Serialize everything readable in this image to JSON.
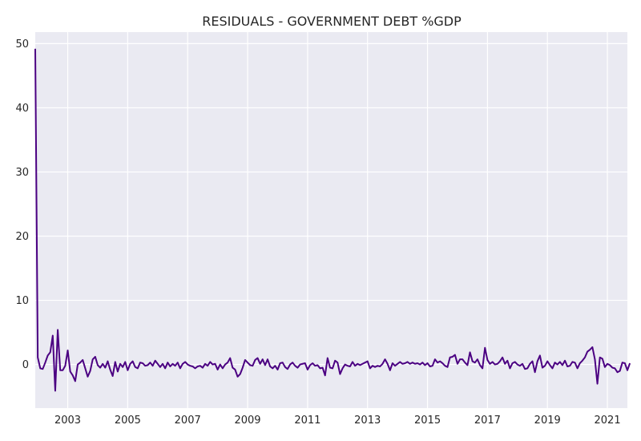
{
  "chart_data": {
    "type": "line",
    "title": "RESIDUALS - GOVERNMENT DEBT %GDP",
    "xlabel": "",
    "ylabel": "",
    "x_start": "2001-12",
    "x_freq": "monthly",
    "xlim": [
      "2001-12",
      "2021-09"
    ],
    "ylim": [
      -6.8,
      51.8
    ],
    "x_tick_labels": [
      "2003",
      "2005",
      "2007",
      "2009",
      "2011",
      "2013",
      "2015",
      "2017",
      "2019",
      "2021"
    ],
    "y_tick_labels": [
      "0",
      "10",
      "20",
      "30",
      "40",
      "50"
    ],
    "y_ticks": [
      0,
      10,
      20,
      30,
      40,
      50
    ],
    "grid": true,
    "legend": "none",
    "series": [
      {
        "color": "#4b0082",
        "values": [
          49.2,
          1.1,
          -0.6,
          -0.7,
          0.3,
          1.4,
          1.9,
          4.5,
          -4.1,
          5.4,
          -0.9,
          -0.9,
          -0.2,
          2.2,
          -1.1,
          -1.7,
          -2.6,
          0.0,
          0.3,
          0.7,
          -0.6,
          -1.9,
          -1.0,
          0.8,
          1.2,
          -0.1,
          -0.5,
          0.1,
          -0.5,
          0.5,
          -0.8,
          -1.8,
          0.4,
          -1.1,
          0.1,
          -0.4,
          0.4,
          -0.9,
          0.1,
          0.5,
          -0.4,
          -0.6,
          0.3,
          0.2,
          -0.2,
          -0.1,
          0.3,
          -0.2,
          0.6,
          0.1,
          -0.4,
          0.1,
          -0.6,
          0.3,
          -0.3,
          0.1,
          -0.2,
          0.3,
          -0.6,
          0.1,
          0.4,
          0.0,
          -0.2,
          -0.3,
          -0.6,
          -0.3,
          -0.2,
          -0.5,
          0.1,
          -0.2,
          0.4,
          0.0,
          0.1,
          -0.8,
          0.0,
          -0.6,
          0.0,
          0.3,
          1.0,
          -0.5,
          -0.8,
          -1.9,
          -1.5,
          -0.5,
          0.7,
          0.3,
          -0.1,
          -0.2,
          0.7,
          1.0,
          0.1,
          0.8,
          -0.1,
          0.8,
          -0.3,
          -0.6,
          -0.2,
          -0.8,
          0.2,
          0.3,
          -0.4,
          -0.7,
          0.0,
          0.3,
          -0.2,
          -0.5,
          0.0,
          0.1,
          0.2,
          -0.8,
          -0.1,
          0.2,
          -0.2,
          -0.1,
          -0.6,
          -0.5,
          -1.7,
          1.0,
          -0.5,
          -0.6,
          0.6,
          0.3,
          -1.5,
          -0.6,
          0.0,
          -0.2,
          -0.3,
          0.4,
          -0.2,
          0.1,
          -0.1,
          0.1,
          0.3,
          0.5,
          -0.6,
          -0.2,
          -0.4,
          -0.2,
          -0.3,
          0.1,
          0.8,
          0.1,
          -0.9,
          0.2,
          -0.2,
          0.1,
          0.4,
          0.1,
          0.2,
          0.4,
          0.1,
          0.3,
          0.1,
          0.2,
          0.0,
          0.3,
          -0.1,
          0.2,
          -0.3,
          -0.2,
          0.8,
          0.3,
          0.5,
          0.2,
          -0.2,
          -0.4,
          1.1,
          1.2,
          1.5,
          0.1,
          0.8,
          0.8,
          0.3,
          -0.1,
          1.9,
          0.5,
          0.3,
          0.8,
          -0.1,
          -0.6,
          2.6,
          0.7,
          0.1,
          0.4,
          0.0,
          0.1,
          0.5,
          1.1,
          0.1,
          0.6,
          -0.6,
          0.2,
          0.4,
          0.0,
          -0.2,
          0.1,
          -0.7,
          -0.6,
          0.1,
          0.5,
          -1.2,
          0.5,
          1.4,
          -0.5,
          -0.2,
          0.5,
          -0.1,
          -0.6,
          0.3,
          0.0,
          0.4,
          -0.1,
          0.6,
          -0.3,
          -0.2,
          0.4,
          0.3,
          -0.6,
          0.2,
          0.6,
          1.1,
          2.0,
          2.3,
          2.7,
          0.8,
          -3.0,
          1.1,
          0.9,
          -0.4,
          0.1,
          -0.1,
          -0.5,
          -0.6,
          -1.2,
          -1.0,
          0.3,
          0.2,
          -0.9,
          0.2
        ]
      }
    ]
  }
}
